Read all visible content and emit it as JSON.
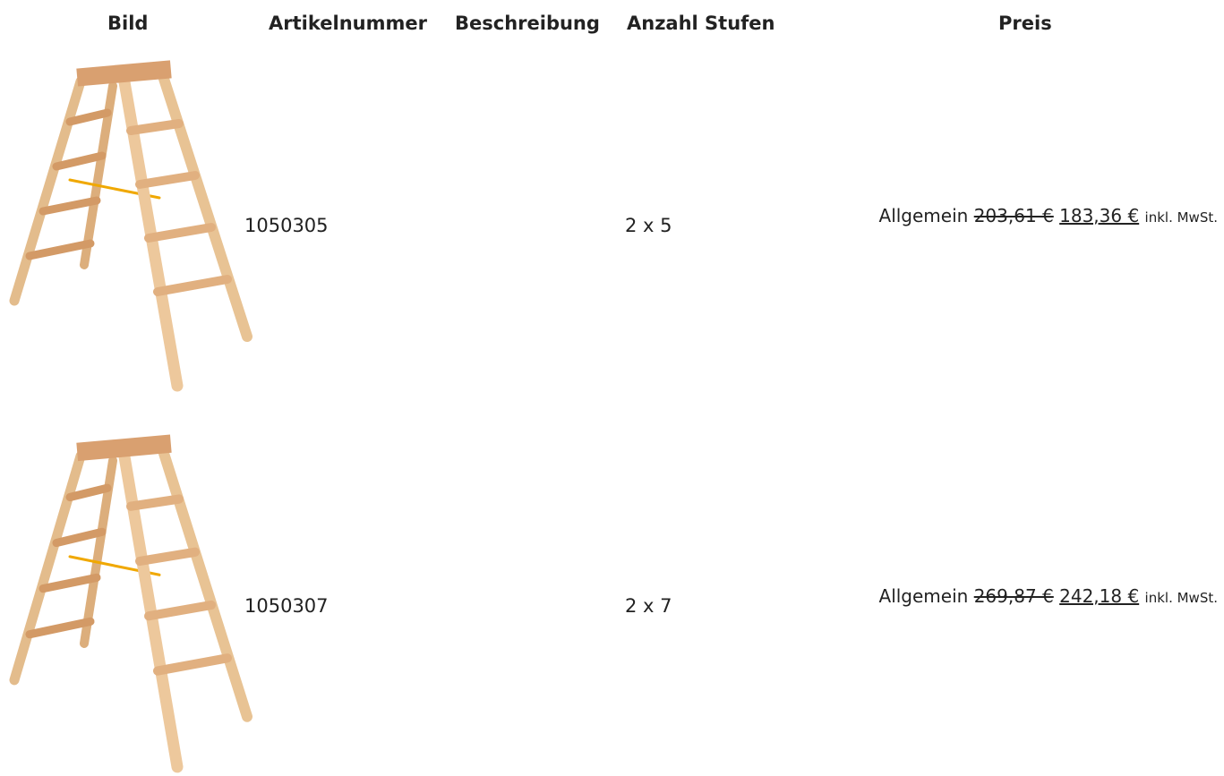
{
  "header": {
    "bild": "Bild",
    "artikelnummer": "Artikelnummer",
    "beschreibung": "Beschreibung",
    "anzahl_stufen": "Anzahl Stufen",
    "preis": "Preis"
  },
  "rows": [
    {
      "artikelnummer": "1050305",
      "anzahl_stufen": "2 x 5",
      "preis_label": "Allgemein",
      "old_price": "203,61 €",
      "new_price": "183,36 €",
      "tax_note": "inkl. MwSt."
    },
    {
      "artikelnummer": "1050307",
      "anzahl_stufen": "2 x 7",
      "preis_label": "Allgemein",
      "old_price": "269,87 €",
      "new_price": "242,18 €",
      "tax_note": "inkl. MwSt."
    }
  ]
}
